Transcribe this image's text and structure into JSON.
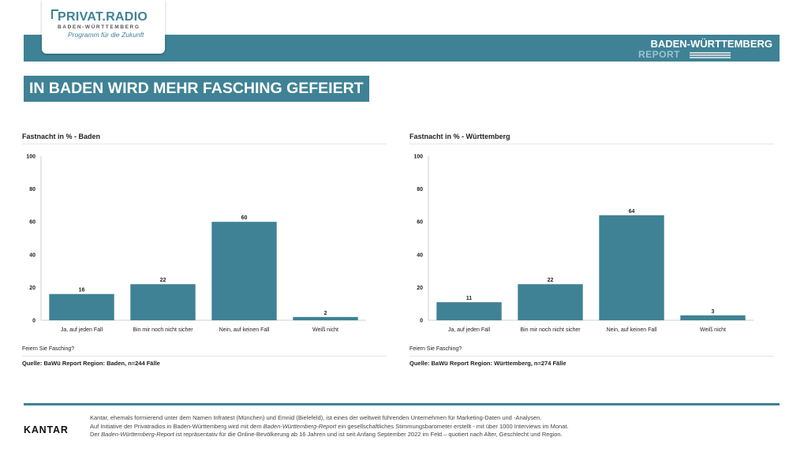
{
  "branding": {
    "logo_title": "PRIVAT.RADIO",
    "logo_subtitle": "BADEN-WÜRTTEMBERG",
    "logo_tagline": "Programm für die Zukunft",
    "report_title": "BADEN-WÜRTTEMBERG",
    "report_subtitle": "REPORT"
  },
  "colors": {
    "accent": "#3f8296",
    "bar": "#3f8296"
  },
  "headline": "IN BADEN WIRD MEHR FASCHING GEFEIERT",
  "chart_data": [
    {
      "type": "bar",
      "title": "Fastnacht in % - Baden",
      "categories": [
        "Ja, auf jeden Fall",
        "Bin mir noch nicht sicher",
        "Nein, auf keinen Fall",
        "Weiß nicht"
      ],
      "values": [
        16,
        22,
        60,
        2
      ],
      "ylim": [
        0,
        100
      ],
      "yticks": [
        0,
        20,
        40,
        60,
        80,
        100
      ],
      "xlabel": "Feiern Sie Fasching?",
      "ylabel": "",
      "source": "Quelle: BaWü Report Region: Baden, n=244 Fälle",
      "grid": false
    },
    {
      "type": "bar",
      "title": "Fastnacht in % - Württemberg",
      "categories": [
        "Ja, auf jeden Fall",
        "Bin mir noch nicht sicher",
        "Nein, auf keinen Fall",
        "Weiß nicht"
      ],
      "values": [
        11,
        22,
        64,
        3
      ],
      "ylim": [
        0,
        100
      ],
      "yticks": [
        0,
        20,
        40,
        60,
        80,
        100
      ],
      "xlabel": "Feiern Sie Fasching?",
      "ylabel": "",
      "source": "Quelle: BaWü Report Region: Württemberg, n=274 Fälle",
      "grid": false
    }
  ],
  "footer": {
    "brand": "KANTAR",
    "line1": "Kantar, ehemals formierend unter dem Namen Infratest (München) und Emnid (Bielefeld), ist eines der weltweit führenden Unternehmen für Marketing-Daten und -Analysen.",
    "line2_pre": "Auf Initiative der Privatradios in Baden-Württemberg wird mit dem ",
    "line2_em": "Baden-Württemberg-Report",
    "line2_post": " ein gesellschaftliches Stimmungsbarometer erstellt - mit über 1000 Interviews im Monat.",
    "line3_pre": "Der ",
    "line3_em": "Baden-Württemberg-Report",
    "line3_post": " ist repräsentativ für die Online-Bevölkerung ab 16 Jahren und ist seit Anfang September 2022 im Feld – quotiert nach Alter, Geschlecht und Region."
  }
}
